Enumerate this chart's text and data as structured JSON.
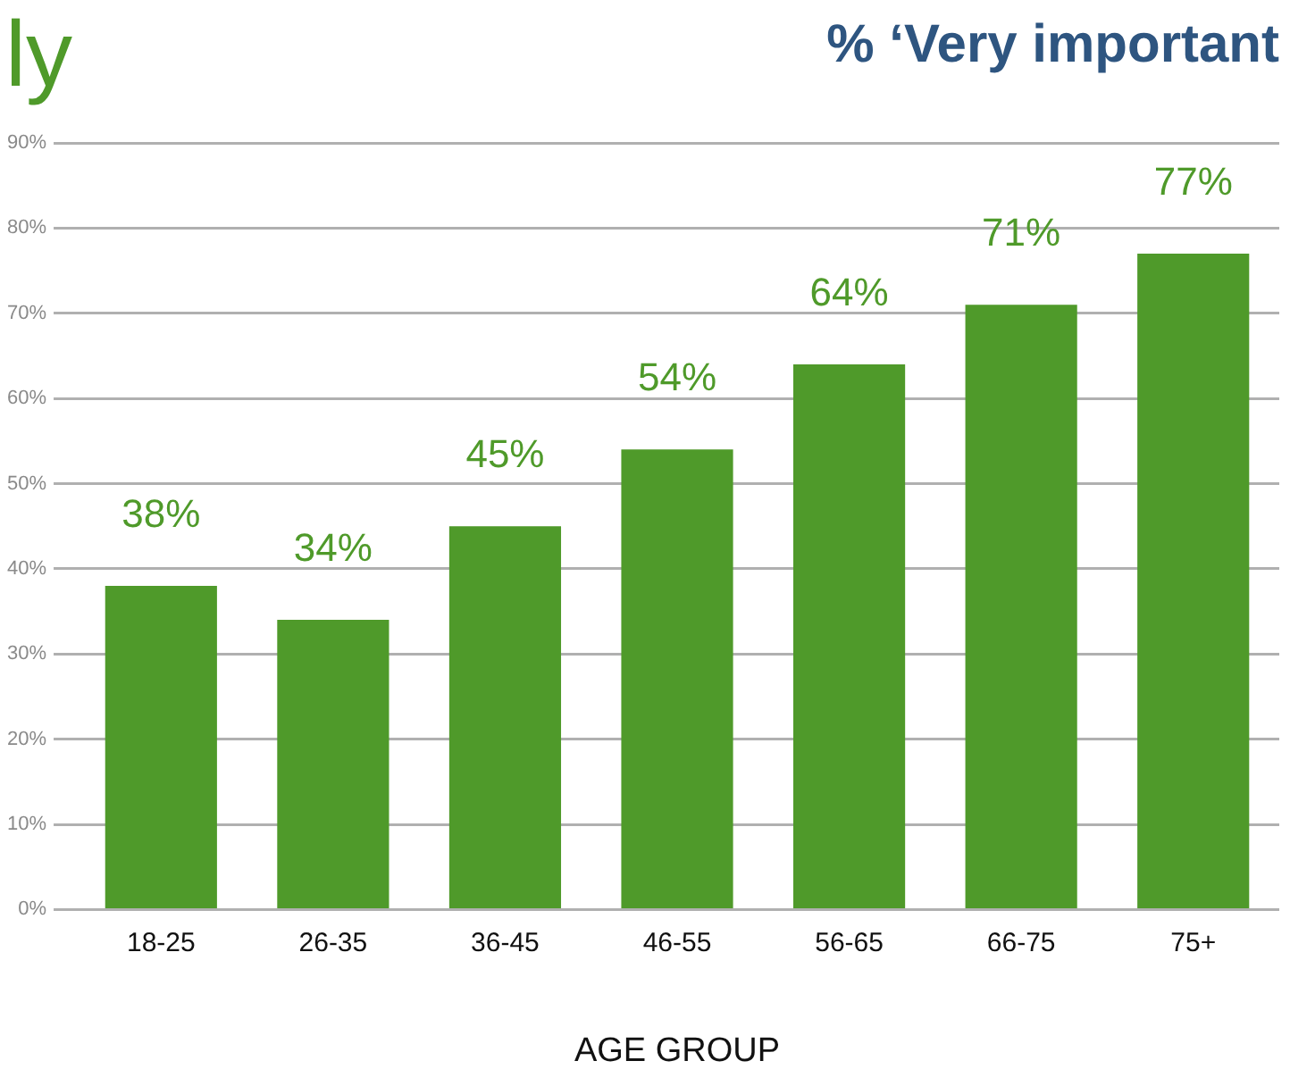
{
  "chart_data": {
    "type": "bar",
    "title": "% ‘Very important",
    "xlabel": "AGE GROUP",
    "annotations": [
      "ly"
    ],
    "categories": [
      "18-25",
      "26-35",
      "36-45",
      "46-55",
      "56-65",
      "66-75",
      "75+"
    ],
    "values": [
      38,
      34,
      45,
      54,
      64,
      71,
      77
    ],
    "value_labels": [
      "38%",
      "34%",
      "45%",
      "54%",
      "64%",
      "71%",
      "77%"
    ],
    "color": "#4f9a2a",
    "ylim": [
      0,
      90
    ],
    "yticks": [
      {
        "value": 0,
        "label": "0%"
      },
      {
        "value": 10,
        "label": "10%"
      },
      {
        "value": 20,
        "label": "20%"
      },
      {
        "value": 30,
        "label": "30%"
      },
      {
        "value": 40,
        "label": "40%"
      },
      {
        "value": 50,
        "label": "50%"
      },
      {
        "value": 60,
        "label": "60%"
      },
      {
        "value": 70,
        "label": "70%"
      },
      {
        "value": 80,
        "label": "80%"
      },
      {
        "value": 90,
        "label": "90%"
      }
    ],
    "grid": "y",
    "legend": false
  }
}
